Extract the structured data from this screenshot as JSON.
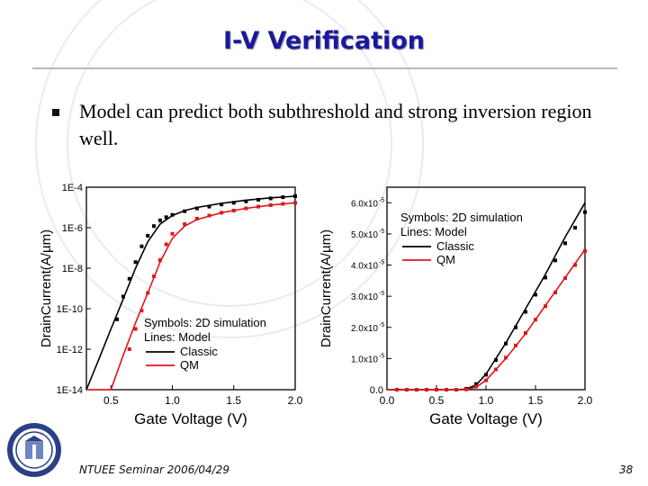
{
  "slide": {
    "title": "I-V Verification",
    "bullet": "Model can predict both subthreshold and strong inversion region well.",
    "footer": "NTUEE Seminar 2006/04/29",
    "page_number": "38"
  },
  "colors": {
    "classic": "#000000",
    "qm": "#e0161b",
    "title": "#1a1a99",
    "axis": "#000000"
  },
  "chart_data": [
    {
      "type": "line",
      "scale": "log-y",
      "xlabel": "Gate Voltage (V)",
      "ylabel_parts": [
        "D",
        "r",
        "a",
        "i",
        "n",
        "C",
        "u",
        "r",
        "r",
        "e",
        "n",
        "t",
        "(",
        "A",
        "/",
        "µm",
        ")"
      ],
      "xlim": [
        0.3,
        2.0
      ],
      "ylim": [
        1e-14,
        0.0001
      ],
      "x_ticks": [
        0.5,
        1.0,
        1.5,
        2.0
      ],
      "x_tick_labels": [
        "0.5",
        "1.0",
        "1.5",
        "2.0"
      ],
      "y_ticks": [
        1e-14,
        1e-12,
        1e-10,
        1e-08,
        1e-06,
        0.0001
      ],
      "y_tick_labels": [
        "1E-14",
        "1E-12",
        "1E-10",
        "1E-8",
        "1E-6",
        "1E-4"
      ],
      "legend": {
        "lines": [
          "Symbols: 2D simulation",
          "Lines: Model"
        ],
        "entries": [
          {
            "name": "Classic",
            "color": "#000000"
          },
          {
            "name": "QM",
            "color": "#e0161b"
          }
        ],
        "placement": "bottom-right"
      },
      "series": [
        {
          "name": "Classic",
          "color": "#000000",
          "line": {
            "x": [
              0.3,
              0.4,
              0.5,
              0.6,
              0.7,
              0.8,
              0.9,
              1.0,
              1.1,
              1.2,
              1.4,
              1.6,
              1.8,
              2.0
            ],
            "y": [
              1e-14,
              3e-13,
              1e-11,
              3e-10,
              1e-08,
              2e-07,
              1.5e-06,
              4e-06,
              7e-06,
              1e-05,
              1.6e-05,
              2.3e-05,
              3e-05,
              3.6e-05
            ]
          },
          "points": {
            "x": [
              0.55,
              0.6,
              0.65,
              0.7,
              0.75,
              0.8,
              0.85,
              0.9,
              0.95,
              1.0,
              1.1,
              1.2,
              1.3,
              1.4,
              1.5,
              1.6,
              1.7,
              1.8,
              1.9,
              2.0
            ],
            "y": [
              3e-11,
              4e-10,
              3e-09,
              2e-08,
              1.2e-07,
              4e-07,
              1.2e-06,
              2.3e-06,
              3.3e-06,
              4.3e-06,
              6.5e-06,
              9e-06,
              1.1e-05,
              1.4e-05,
              1.7e-05,
              2e-05,
              2.4e-05,
              2.8e-05,
              3.2e-05,
              3.6e-05
            ]
          }
        },
        {
          "name": "QM",
          "color": "#e0161b",
          "line": {
            "x": [
              0.3,
              0.4,
              0.5,
              0.6,
              0.7,
              0.8,
              0.9,
              1.0,
              1.1,
              1.2,
              1.4,
              1.6,
              1.8,
              2.0
            ],
            "y": [
              1e-14,
              1e-14,
              1e-14,
              5e-13,
              2e-11,
              6e-10,
              2e-08,
              3e-07,
              1.2e-06,
              2.5e-06,
              5.5e-06,
              9e-06,
              1.3e-05,
              1.7e-05
            ]
          },
          "points": {
            "x": [
              0.65,
              0.7,
              0.75,
              0.8,
              0.85,
              0.9,
              0.95,
              1.0,
              1.1,
              1.2,
              1.3,
              1.4,
              1.5,
              1.6,
              1.7,
              1.8,
              1.9,
              2.0
            ],
            "y": [
              1e-12,
              1e-11,
              8e-11,
              6e-10,
              4e-09,
              2.5e-08,
              1.5e-07,
              5e-07,
              1.5e-06,
              2.8e-06,
              4e-06,
              5.5e-06,
              7e-06,
              9e-06,
              1.1e-05,
              1.3e-05,
              1.5e-05,
              1.7e-05
            ]
          }
        }
      ]
    },
    {
      "type": "line",
      "scale": "linear",
      "xlabel": "Gate Voltage (V)",
      "ylabel_parts": [
        "D",
        "r",
        "a",
        "i",
        "n",
        "C",
        "u",
        "r",
        "r",
        "e",
        "n",
        "t",
        "(",
        "A",
        "/",
        "µm",
        ")"
      ],
      "xlim": [
        0.0,
        2.0
      ],
      "ylim": [
        0.0,
        6.5e-05
      ],
      "x_ticks": [
        0.0,
        0.5,
        1.0,
        1.5,
        2.0
      ],
      "x_tick_labels": [
        "0.0",
        "0.5",
        "1.0",
        "1.5",
        "2.0"
      ],
      "y_ticks": [
        0,
        1e-05,
        2e-05,
        3e-05,
        4e-05,
        5e-05,
        6e-05
      ],
      "y_tick_labels": [
        "0.0",
        "1.0x10",
        "2.0x10",
        "3.0x10",
        "4.0x10",
        "5.0x10",
        "6.0x10"
      ],
      "y_tick_exponent": "-5",
      "legend": {
        "lines": [
          "Symbols: 2D simulation",
          "Lines: Model"
        ],
        "entries": [
          {
            "name": "Classic",
            "color": "#000000"
          },
          {
            "name": "QM",
            "color": "#e0161b"
          }
        ],
        "placement": "top-left"
      },
      "series": [
        {
          "name": "Classic",
          "color": "#000000",
          "line": {
            "x": [
              0.0,
              0.7,
              0.8,
              0.9,
              1.0,
              1.2,
              1.4,
              1.6,
              1.8,
              2.0
            ],
            "y": [
              0,
              0,
              2e-07,
              1.5e-06,
              5e-06,
              1.5e-05,
              2.6e-05,
              3.7e-05,
              4.9e-05,
              6e-05
            ]
          },
          "points": {
            "x": [
              0.8,
              0.9,
              1.0,
              1.1,
              1.2,
              1.3,
              1.4,
              1.5,
              1.6,
              1.7,
              1.8,
              1.9,
              2.0
            ],
            "y": [
              3e-07,
              1.8e-06,
              4.8e-06,
              9.5e-06,
              1.48e-05,
              2e-05,
              2.5e-05,
              3.05e-05,
              3.6e-05,
              4.15e-05,
              4.7e-05,
              5.2e-05,
              5.7e-05
            ]
          }
        },
        {
          "name": "QM",
          "color": "#e0161b",
          "line": {
            "x": [
              0.0,
              0.8,
              0.9,
              1.0,
              1.2,
              1.4,
              1.6,
              1.8,
              2.0
            ],
            "y": [
              0,
              0,
              8e-07,
              3e-06,
              1e-05,
              1.8e-05,
              2.7e-05,
              3.6e-05,
              4.5e-05
            ]
          },
          "points": {
            "x": [
              0.1,
              0.2,
              0.3,
              0.4,
              0.5,
              0.6,
              0.7,
              0.8,
              0.9,
              1.0,
              1.1,
              1.2,
              1.3,
              1.4,
              1.5,
              1.6,
              1.7,
              1.8,
              1.9,
              2.0
            ],
            "y": [
              0,
              0,
              0,
              0,
              0,
              0,
              0,
              1e-07,
              1e-06,
              3e-06,
              6.5e-06,
              1.03e-05,
              1.42e-05,
              1.82e-05,
              2.25e-05,
              2.68e-05,
              3.12e-05,
              3.58e-05,
              4e-05,
              4.45e-05
            ]
          }
        }
      ]
    }
  ]
}
